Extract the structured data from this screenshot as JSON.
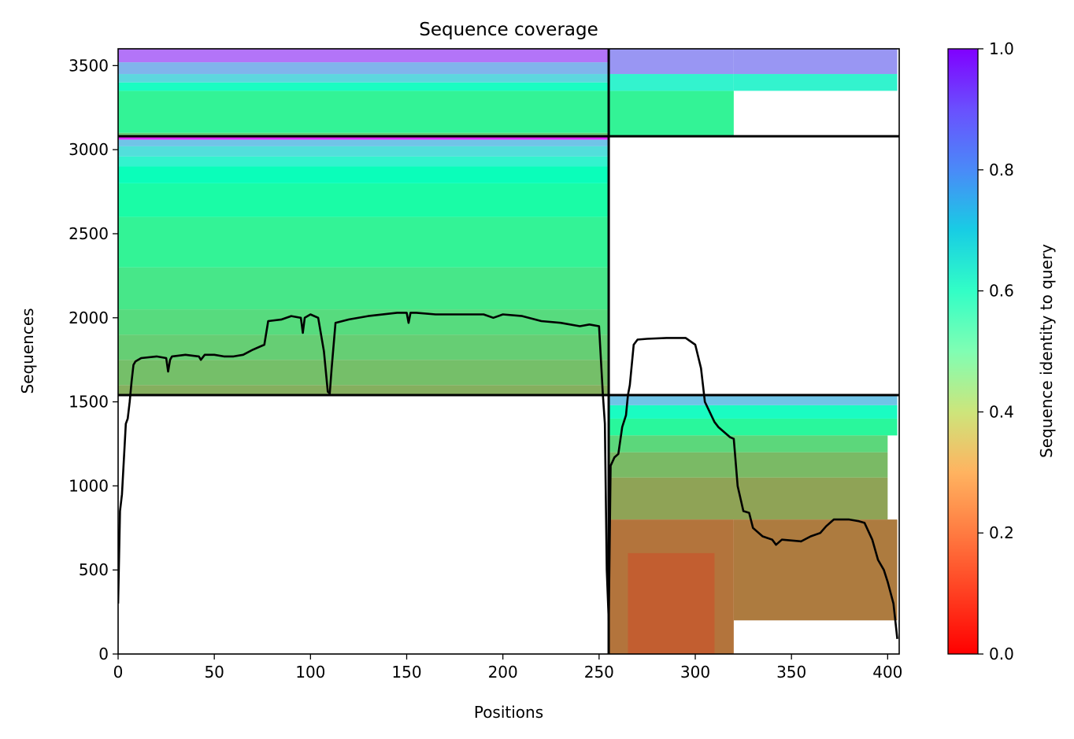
{
  "chart_data": {
    "type": "heatmap",
    "title": "Sequence coverage",
    "xlabel": "Positions",
    "ylabel": "Sequences",
    "xlim": [
      0,
      406
    ],
    "ylim": [
      0,
      3600
    ],
    "x_ticks": [
      0,
      50,
      100,
      150,
      200,
      250,
      300,
      350,
      400
    ],
    "y_ticks": [
      0,
      500,
      1000,
      1500,
      2000,
      2500,
      3000,
      3500
    ],
    "colorbar": {
      "label": "Sequence identity to query",
      "range": [
        0,
        1
      ],
      "ticks": [
        "0.0",
        "0.2",
        "0.4",
        "0.6",
        "0.8",
        "1.0"
      ],
      "colormap": "rainbow_r"
    },
    "divider_lines": {
      "vertical_x": [
        255
      ],
      "horizontal_y": [
        1540,
        3080
      ]
    },
    "blocks": [
      {
        "x": [
          0,
          255
        ],
        "y": [
          1540,
          3080
        ],
        "identity_bands": [
          {
            "y": [
              1540,
              1600
            ],
            "identity": 0.24
          },
          {
            "y": [
              1600,
              1750
            ],
            "identity": 0.27
          },
          {
            "y": [
              1750,
              1900
            ],
            "identity": 0.3
          },
          {
            "y": [
              1900,
              2050
            ],
            "identity": 0.33
          },
          {
            "y": [
              2050,
              2300
            ],
            "identity": 0.36
          },
          {
            "y": [
              2300,
              2600
            ],
            "identity": 0.4
          },
          {
            "y": [
              2600,
              2800
            ],
            "identity": 0.45
          },
          {
            "y": [
              2800,
              2900
            ],
            "identity": 0.52
          },
          {
            "y": [
              2900,
              2960
            ],
            "identity": 0.6
          },
          {
            "y": [
              2960,
              3020
            ],
            "identity": 0.66
          },
          {
            "y": [
              3020,
              3060
            ],
            "identity": 0.72
          },
          {
            "y": [
              3060,
              3080
            ],
            "identity": 0.95
          }
        ]
      },
      {
        "x": [
          0,
          255
        ],
        "y": [
          3080,
          3600
        ],
        "identity_bands": [
          {
            "y": [
              3080,
              3100
            ],
            "identity": 0.3
          },
          {
            "y": [
              3100,
              3350
            ],
            "identity": 0.4
          },
          {
            "y": [
              3350,
              3400
            ],
            "identity": 0.55
          },
          {
            "y": [
              3400,
              3450
            ],
            "identity": 0.68
          },
          {
            "y": [
              3450,
              3520
            ],
            "identity": 0.75
          },
          {
            "y": [
              3520,
              3600
            ],
            "identity": 0.85
          }
        ]
      },
      {
        "x": [
          255,
          320
        ],
        "y": [
          3080,
          3600
        ],
        "identity_bands": [
          {
            "y": [
              3080,
              3350
            ],
            "identity": 0.4
          },
          {
            "y": [
              3350,
              3450
            ],
            "identity": 0.6
          },
          {
            "y": [
              3450,
              3600
            ],
            "identity": 0.8
          }
        ]
      },
      {
        "x": [
          320,
          405
        ],
        "y": [
          3350,
          3600
        ],
        "identity_bands": [
          {
            "y": [
              3350,
              3450
            ],
            "identity": 0.6
          },
          {
            "y": [
              3450,
              3600
            ],
            "identity": 0.8
          }
        ]
      },
      {
        "x": [
          255,
          405
        ],
        "y": [
          1300,
          1540
        ],
        "identity_bands": [
          {
            "y": [
              1300,
              1400
            ],
            "identity": 0.42
          },
          {
            "y": [
              1400,
              1480
            ],
            "identity": 0.55
          },
          {
            "y": [
              1480,
              1540
            ],
            "identity": 0.72
          }
        ]
      },
      {
        "x": [
          255,
          400
        ],
        "y": [
          800,
          1300
        ],
        "identity_bands": [
          {
            "y": [
              800,
              1050
            ],
            "identity": 0.22
          },
          {
            "y": [
              1050,
              1200
            ],
            "identity": 0.26
          },
          {
            "y": [
              1200,
              1300
            ],
            "identity": 0.32
          }
        ]
      },
      {
        "x": [
          255,
          320
        ],
        "y": [
          0,
          800
        ],
        "identity_bands": [
          {
            "y": [
              0,
              800
            ],
            "identity": 0.15
          }
        ]
      },
      {
        "x": [
          265,
          310
        ],
        "y": [
          0,
          600
        ],
        "identity_bands": [
          {
            "y": [
              0,
              600
            ],
            "identity": 0.12
          }
        ]
      },
      {
        "x": [
          320,
          405
        ],
        "y": [
          200,
          800
        ],
        "identity_bands": [
          {
            "y": [
              200,
              800
            ],
            "identity": 0.16
          }
        ]
      }
    ],
    "coverage_line": {
      "x": [
        0,
        1,
        2,
        4,
        5,
        6,
        7,
        8,
        9,
        12,
        20,
        25,
        26,
        27,
        28,
        35,
        42,
        43,
        45,
        50,
        55,
        60,
        65,
        70,
        76,
        78,
        85,
        90,
        95,
        96,
        97,
        100,
        104,
        107,
        109,
        110,
        111,
        113,
        120,
        130,
        145,
        150,
        151,
        152,
        155,
        165,
        175,
        190,
        195,
        200,
        210,
        220,
        230,
        240,
        245,
        250,
        252,
        253,
        254,
        255,
        256,
        258,
        260,
        262,
        264,
        265,
        266,
        268,
        270,
        275,
        285,
        295,
        300,
        303,
        305,
        310,
        312,
        318,
        320,
        322,
        325,
        328,
        330,
        335,
        340,
        342,
        345,
        355,
        360,
        365,
        368,
        372,
        380,
        385,
        388,
        392,
        395,
        398,
        400,
        403,
        405
      ],
      "y": [
        300,
        850,
        950,
        1370,
        1400,
        1500,
        1620,
        1720,
        1740,
        1760,
        1770,
        1760,
        1680,
        1750,
        1770,
        1780,
        1770,
        1750,
        1780,
        1780,
        1770,
        1770,
        1780,
        1810,
        1840,
        1980,
        1990,
        2010,
        2000,
        1910,
        2000,
        2020,
        2000,
        1800,
        1560,
        1550,
        1700,
        1970,
        1990,
        2010,
        2030,
        2030,
        1970,
        2030,
        2030,
        2020,
        2020,
        2020,
        2000,
        2020,
        2010,
        1980,
        1970,
        1950,
        1960,
        1950,
        1540,
        1370,
        500,
        200,
        1120,
        1170,
        1190,
        1350,
        1420,
        1540,
        1600,
        1840,
        1870,
        1875,
        1880,
        1880,
        1840,
        1700,
        1500,
        1380,
        1350,
        1290,
        1280,
        1000,
        850,
        840,
        750,
        700,
        680,
        650,
        680,
        670,
        700,
        720,
        760,
        800,
        800,
        790,
        780,
        680,
        560,
        500,
        430,
        300,
        90
      ]
    }
  }
}
